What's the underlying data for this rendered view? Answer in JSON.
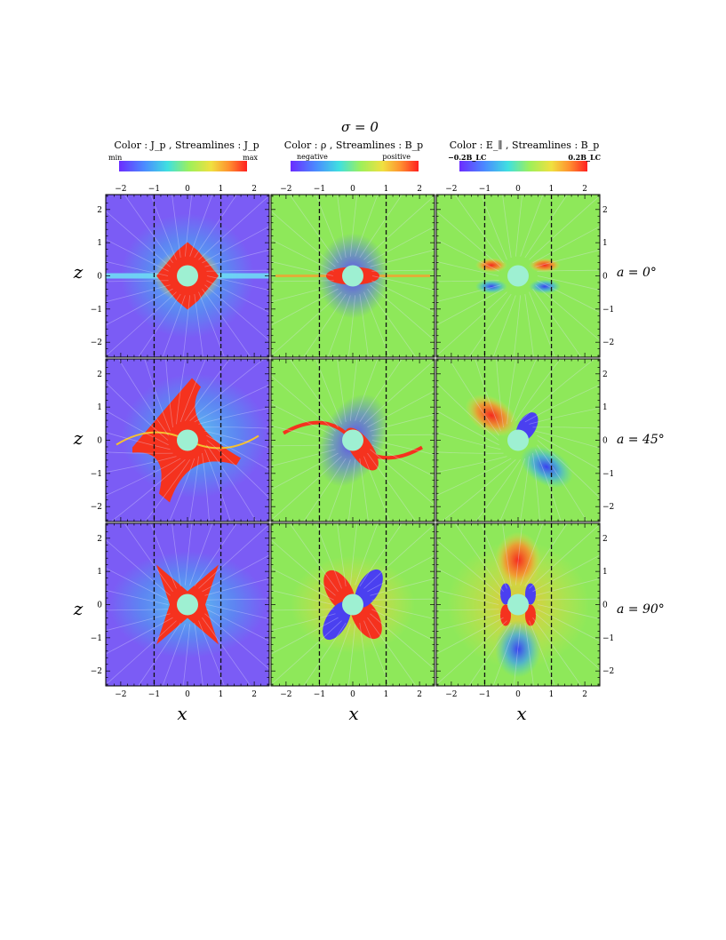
{
  "figure": {
    "title": "σ = 0",
    "columns": [
      {
        "header": "Color : J_p ,    Streamlines : J_p",
        "colorbar": {
          "left_label": "min",
          "right_label": "max"
        }
      },
      {
        "header": "Color : ρ ,    Streamlines : B_p",
        "colorbar": {
          "left_label": "negative",
          "right_label": "positive"
        }
      },
      {
        "header": "Color : E_∥ ,    Streamlines : B_p",
        "colorbar": {
          "left_label": "−0.2B_LC",
          "right_label": "0.2B_LC"
        }
      }
    ],
    "rows": [
      {
        "label": "a = 0°"
      },
      {
        "label": "a = 45°"
      },
      {
        "label": "a = 90°"
      }
    ],
    "x_axis_label": "x",
    "z_axis_label": "z",
    "tick_values": [
      -2,
      -1,
      0,
      1,
      2
    ],
    "colors": {
      "purple_bg": "#7b5cf5",
      "green_bg": "#8ee85a",
      "red": "#f5321e",
      "star": "#9ef0d2",
      "streamline": "#e6e6ff"
    }
  }
}
